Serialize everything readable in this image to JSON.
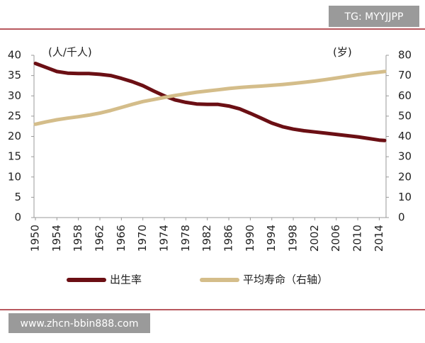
{
  "chart_data": {
    "type": "line",
    "x": [
      1950,
      1952,
      1954,
      1956,
      1958,
      1960,
      1962,
      1964,
      1966,
      1968,
      1970,
      1972,
      1974,
      1976,
      1978,
      1980,
      1982,
      1984,
      1986,
      1988,
      1990,
      1992,
      1994,
      1996,
      1998,
      2000,
      2002,
      2004,
      2006,
      2008,
      2010,
      2012,
      2014,
      2015
    ],
    "series": [
      {
        "name": "出生率",
        "color": "#6b0f14",
        "values": [
          38,
          37,
          36,
          35.6,
          35.5,
          35.5,
          35.3,
          35,
          34.3,
          33.5,
          32.5,
          31.2,
          30,
          29,
          28.4,
          28,
          27.9,
          27.9,
          27.5,
          26.8,
          25.7,
          24.5,
          23.3,
          22.4,
          21.8,
          21.4,
          21.1,
          20.8,
          20.5,
          20.2,
          19.9,
          19.5,
          19.1,
          19
        ]
      },
      {
        "name": "平均寿命（右轴）",
        "color": "#d4bd8a",
        "axis": "y2",
        "values": [
          46,
          47.2,
          48.2,
          49,
          49.7,
          50.5,
          51.5,
          52.8,
          54.3,
          55.8,
          57.2,
          58.2,
          59.2,
          60.2,
          61,
          61.8,
          62.4,
          63,
          63.6,
          64.1,
          64.5,
          64.8,
          65.2,
          65.6,
          66.1,
          66.7,
          67.3,
          68,
          68.8,
          69.6,
          70.4,
          71.1,
          71.7,
          72
        ]
      }
    ],
    "y_label": "(人/千人)",
    "y2_label": "(岁)",
    "xlim": [
      1950,
      2015
    ],
    "xticks": [
      1950,
      1954,
      1958,
      1962,
      1966,
      1970,
      1974,
      1978,
      1982,
      1986,
      1990,
      1994,
      1998,
      2002,
      2006,
      2010,
      2014
    ],
    "ylim": [
      0,
      40
    ],
    "yticks": [
      0,
      5,
      10,
      15,
      20,
      25,
      30,
      35,
      40
    ],
    "y2lim": [
      0,
      80
    ],
    "y2ticks": [
      0,
      10,
      20,
      30,
      40,
      50,
      60,
      70,
      80
    ]
  },
  "watermarks": [
    "TG: MYYJJPP",
    "www.zhcn-bbin888.com"
  ]
}
